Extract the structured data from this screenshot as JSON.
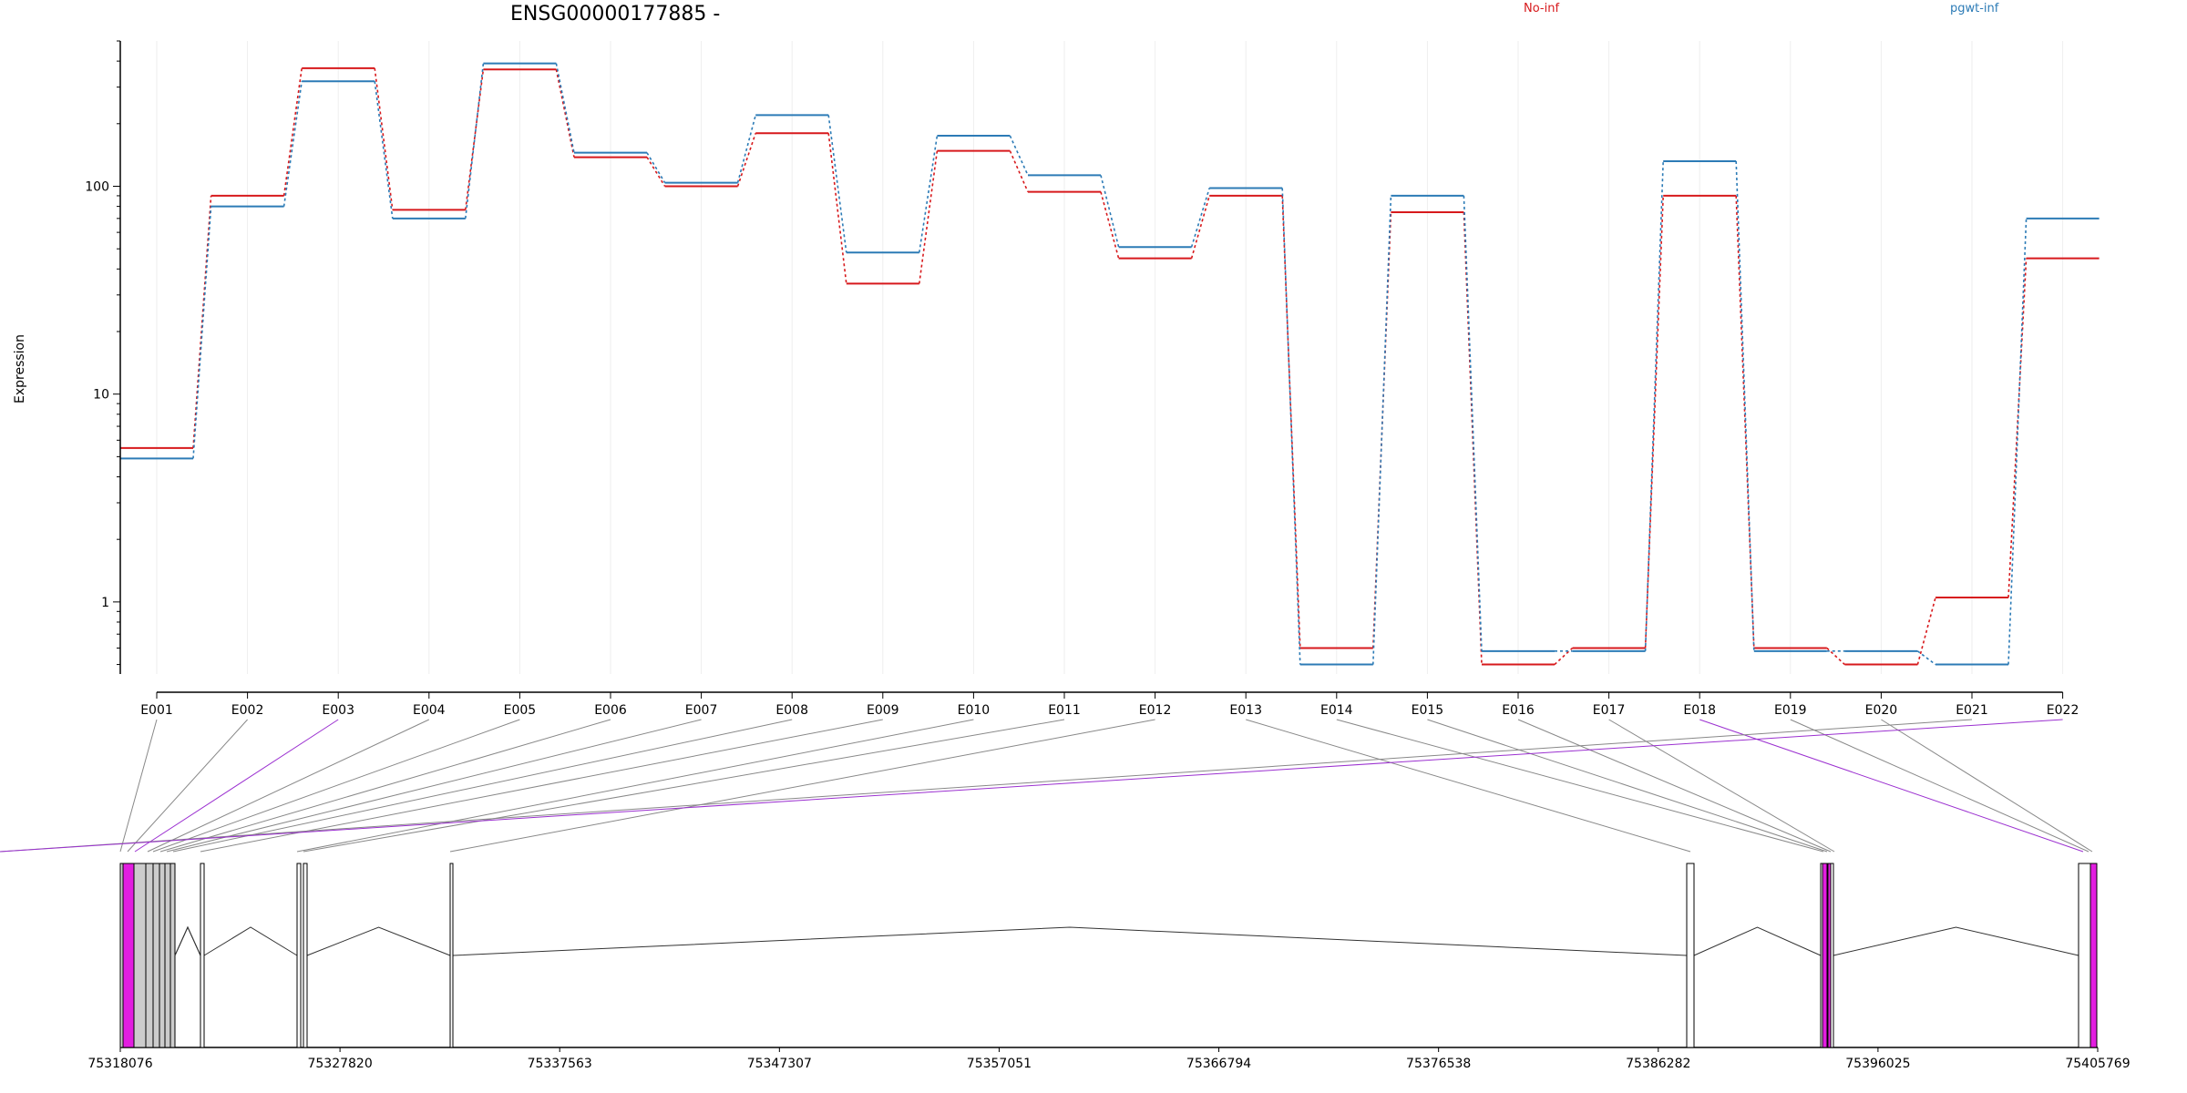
{
  "chart_data": {
    "type": "line",
    "title": "ENSG00000177885 -",
    "xlabel": "",
    "ylabel": "Expression",
    "y_scale": "log",
    "ylim": [
      0.45,
      500
    ],
    "yticks": [
      1,
      10,
      100
    ],
    "ytick_labels": [
      "1",
      "10",
      "100"
    ],
    "grid": "vertical",
    "legend_placement": "top",
    "categories": [
      "E001",
      "E002",
      "E003",
      "E004",
      "E005",
      "E006",
      "E007",
      "E008",
      "E009",
      "E010",
      "E011",
      "E012",
      "E013",
      "E014",
      "E015",
      "E016",
      "E017",
      "E018",
      "E019",
      "E020",
      "E021",
      "E022"
    ],
    "series": [
      {
        "name": "No-inf",
        "color": "#d7191c",
        "values": [
          5.5,
          90,
          370,
          77,
          365,
          138,
          100,
          180,
          34,
          148,
          94,
          45,
          90,
          0.6,
          75,
          0.5,
          0.6,
          90,
          0.6,
          0.5,
          1.05,
          45
        ]
      },
      {
        "name": "pgwt-inf",
        "color": "#2c7bb6",
        "values": [
          4.9,
          80,
          320,
          70,
          390,
          145,
          104,
          220,
          48,
          175,
          113,
          51,
          98,
          0.5,
          90,
          0.58,
          0.58,
          132,
          0.58,
          0.58,
          0.5,
          70
        ]
      }
    ],
    "gene_model": {
      "coordinate_labels": [
        "75318076",
        "75327820",
        "75337563",
        "75347307",
        "75357051",
        "75366794",
        "75376538",
        "75386282",
        "75396025",
        "75405769"
      ],
      "highlighted_exons": [
        "E003",
        "E018",
        "E022"
      ],
      "highlight_color": "#e21ee0"
    }
  }
}
